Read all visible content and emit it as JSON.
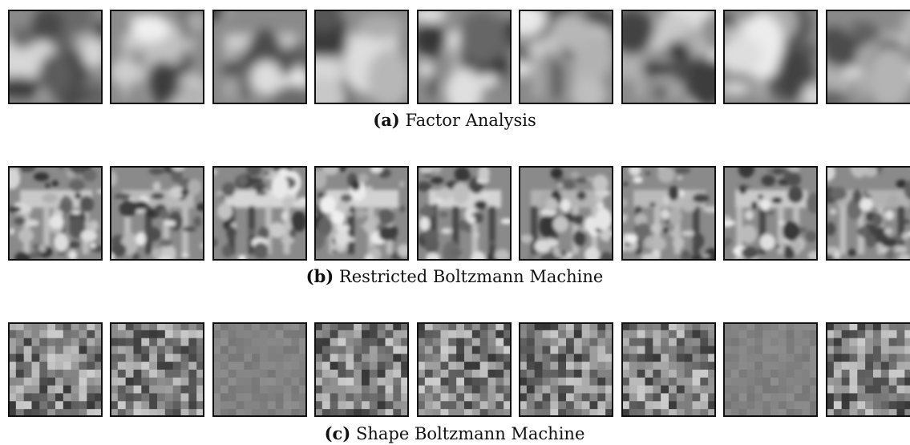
{
  "panels": [
    {
      "label": "(a)",
      "caption": "Factor Analysis"
    },
    {
      "label": "(b)",
      "caption": "Restricted Boltzmann Machine"
    },
    {
      "label": "(c)",
      "caption": "Shape Boltzmann Machine"
    }
  ]
}
